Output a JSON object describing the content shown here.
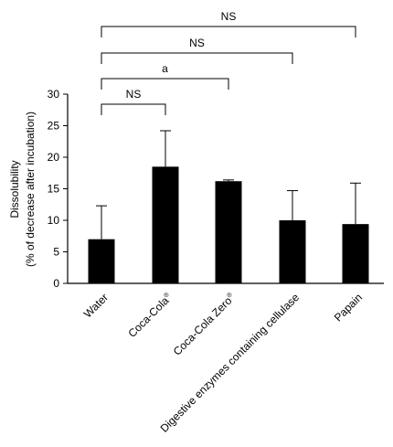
{
  "chart_data": {
    "type": "bar",
    "categories": [
      "Water",
      "Coca-Cola®",
      "Coca-Cola Zero®",
      "Digestive enzymes containing cellulase",
      "Papain"
    ],
    "values": [
      7.0,
      18.5,
      16.2,
      10.0,
      9.4
    ],
    "errors": [
      5.3,
      5.7,
      0.2,
      4.7,
      6.5
    ],
    "ylabel": "Dissolubility",
    "ylabel2": "(% of decrease after incubation)",
    "ylim": [
      0,
      30
    ],
    "yticks": [
      0,
      5,
      10,
      15,
      20,
      25,
      30
    ],
    "grid": false,
    "bar_color": "#000000",
    "comparisons": [
      {
        "from": 0,
        "to": 1,
        "label": "NS"
      },
      {
        "from": 0,
        "to": 2,
        "label": "a"
      },
      {
        "from": 0,
        "to": 3,
        "label": "NS"
      },
      {
        "from": 0,
        "to": 4,
        "label": "NS"
      }
    ]
  }
}
